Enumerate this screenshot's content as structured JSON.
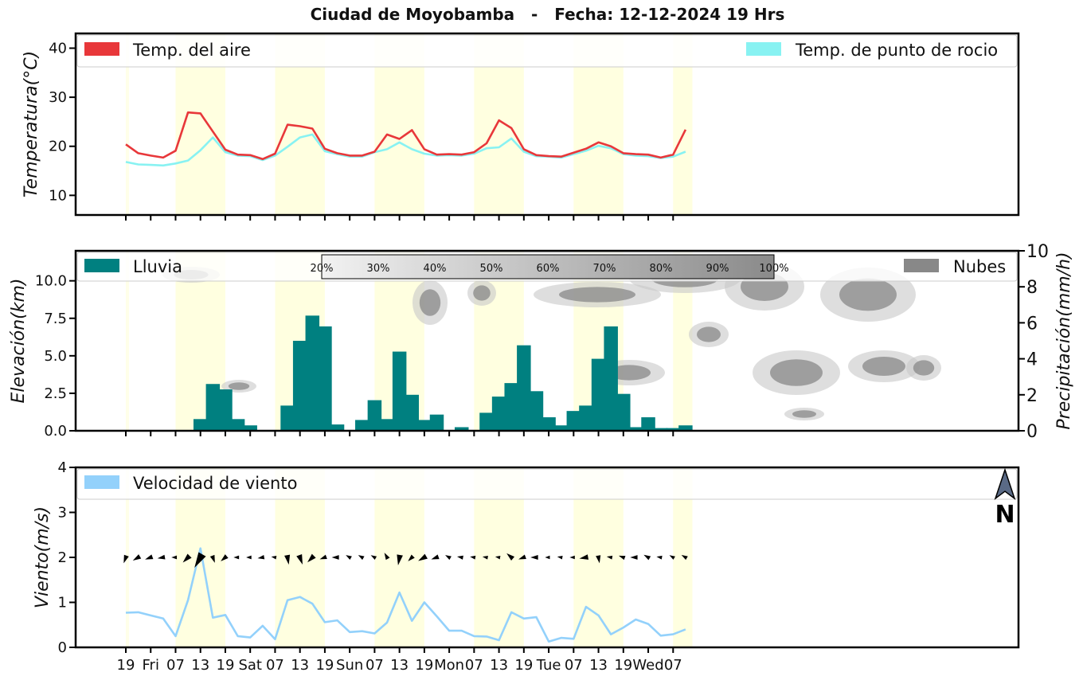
{
  "title": "Ciudad de Moyobamba   -   Fecha: 12-12-2024 19 Hrs",
  "x_ticks": [
    "19",
    "Fri",
    "07",
    "13",
    "19",
    "Sat",
    "07",
    "13",
    "19",
    "Sun",
    "07",
    "13",
    "19",
    "Mon",
    "07",
    "13",
    "19",
    "Tue",
    "07",
    "13",
    "19",
    "Wed",
    "07"
  ],
  "colors": {
    "air": "#e8373a",
    "dew": "#88f2f2",
    "rain": "#008080",
    "clouds": "#888888",
    "wind": "#93d1fb",
    "daytime": "#ffffe0",
    "north_arrow": "#5a6a86"
  },
  "chart_data": [
    {
      "type": "line",
      "ylabel": "Temperatura(°C)",
      "ylim": [
        6,
        43
      ],
      "yticks": [
        "10",
        "20",
        "30",
        "40"
      ],
      "x": [
        "Thu 19h",
        "Thu 22h",
        "Fri 01h",
        "Fri 04h",
        "Fri 07h",
        "Fri 10h",
        "Fri 13h",
        "Fri 16h",
        "Fri 19h",
        "Fri 22h",
        "Sat 01h",
        "Sat 04h",
        "Sat 07h",
        "Sat 10h",
        "Sat 13h",
        "Sat 16h",
        "Sat 19h",
        "Sat 22h",
        "Sun 01h",
        "Sun 04h",
        "Sun 07h",
        "Sun 10h",
        "Sun 13h",
        "Sun 16h",
        "Sun 19h",
        "Sun 22h",
        "Mon 01h",
        "Mon 04h",
        "Mon 07h",
        "Mon 10h",
        "Mon 13h",
        "Mon 16h",
        "Mon 19h",
        "Mon 22h",
        "Tue 01h",
        "Tue 04h",
        "Tue 07h",
        "Tue 10h",
        "Tue 13h",
        "Tue 16h",
        "Tue 19h",
        "Tue 22h",
        "Wed 01h",
        "Wed 04h",
        "Wed 07h",
        "Wed 10h"
      ],
      "series": [
        {
          "name": "Temp. del aire",
          "values": [
            20.4,
            18.6,
            18.1,
            17.7,
            19.1,
            26.9,
            26.7,
            23.0,
            19.3,
            18.3,
            18.2,
            17.4,
            18.5,
            24.4,
            24.1,
            23.6,
            19.5,
            18.6,
            18.1,
            18.1,
            18.9,
            22.4,
            21.5,
            23.3,
            19.4,
            18.3,
            18.4,
            18.3,
            18.8,
            20.6,
            25.3,
            23.7,
            19.4,
            18.2,
            18.0,
            17.9,
            18.7,
            19.5,
            20.8,
            20.0,
            18.6,
            18.4,
            18.3,
            17.7,
            18.3,
            23.4
          ]
        },
        {
          "name": "Temp. de punto de rocio",
          "values": [
            16.8,
            16.3,
            16.2,
            16.1,
            16.5,
            17.1,
            19.2,
            21.8,
            18.8,
            18.1,
            18.0,
            17.2,
            18.1,
            19.9,
            21.8,
            22.4,
            19.0,
            18.4,
            17.9,
            17.9,
            18.8,
            19.4,
            20.8,
            19.4,
            18.5,
            18.1,
            18.2,
            18.1,
            18.5,
            19.6,
            19.8,
            21.6,
            18.9,
            18.0,
            17.9,
            17.7,
            18.4,
            19.1,
            20.1,
            19.6,
            18.4,
            18.1,
            18.0,
            17.6,
            17.9,
            18.9
          ]
        }
      ]
    },
    {
      "type": "bar",
      "ylabel": "Elevación(km)",
      "ylim": [
        0,
        12
      ],
      "yticks": [
        "0.0",
        "2.5",
        "5.0",
        "7.5",
        "10.0"
      ],
      "y2label": "Precipitación(mm/h)",
      "y2lim": [
        0,
        10
      ],
      "y2ticks": [
        "0",
        "2",
        "4",
        "6",
        "8",
        "10"
      ],
      "cloud_scale": [
        "20%",
        "30%",
        "40%",
        "50%",
        "60%",
        "70%",
        "80%",
        "90%",
        "100%"
      ],
      "series": [
        {
          "name": "Lluvia",
          "values": [
            0,
            0,
            0,
            0,
            0,
            0,
            0.65,
            2.6,
            2.3,
            0.65,
            0.3,
            0,
            0,
            1.4,
            5.0,
            6.4,
            5.8,
            0.35,
            0,
            0.6,
            1.7,
            0.65,
            4.4,
            2.0,
            0.6,
            0.9,
            0,
            0.2,
            0,
            1.0,
            1.9,
            2.65,
            4.75,
            2.2,
            0.75,
            0.3,
            1.1,
            1.4,
            4.0,
            5.8,
            2.05,
            0.2,
            0.75,
            0.15,
            0.15,
            0.3
          ]
        },
        {
          "name": "Nubes",
          "values": []
        }
      ]
    },
    {
      "type": "line",
      "ylabel": "Viento(m/s)",
      "ylim": [
        0,
        4
      ],
      "yticks": [
        "0",
        "1",
        "2",
        "3",
        "4"
      ],
      "north_label": "N",
      "series": [
        {
          "name": "Velocidad de viento",
          "values": [
            0.77,
            0.78,
            0.71,
            0.64,
            0.25,
            1.05,
            2.2,
            0.66,
            0.72,
            0.25,
            0.22,
            0.48,
            0.18,
            1.05,
            1.12,
            0.97,
            0.56,
            0.6,
            0.34,
            0.36,
            0.31,
            0.55,
            1.22,
            0.59,
            1.0,
            0.69,
            0.37,
            0.37,
            0.25,
            0.24,
            0.16,
            0.78,
            0.64,
            0.67,
            0.13,
            0.21,
            0.19,
            0.9,
            0.71,
            0.29,
            0.44,
            0.62,
            0.52,
            0.26,
            0.29,
            0.4
          ]
        }
      ]
    }
  ]
}
